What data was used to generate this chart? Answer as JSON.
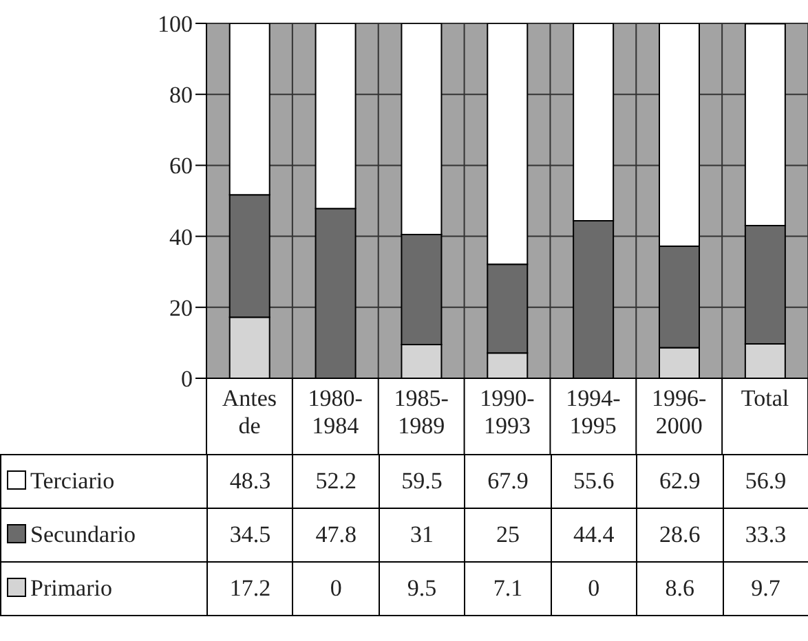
{
  "chart_data": {
    "type": "bar",
    "stacked": true,
    "categories": [
      "Antes de",
      "1980-1984",
      "1985-1989",
      "1990-1993",
      "1994-1995",
      "1996-2000",
      "Total"
    ],
    "series": [
      {
        "name": "Primario",
        "color": "#d4d4d4",
        "values": [
          17.2,
          0,
          9.5,
          7.1,
          0,
          8.6,
          9.7
        ]
      },
      {
        "name": "Secundario",
        "color": "#6b6b6b",
        "values": [
          34.5,
          47.8,
          31,
          25,
          44.4,
          28.6,
          33.3
        ]
      },
      {
        "name": "Terciario",
        "color": "#ffffff",
        "values": [
          48.3,
          52.2,
          59.5,
          67.9,
          55.6,
          62.9,
          56.9
        ]
      }
    ],
    "ylim": [
      0,
      100
    ],
    "yticks": [
      0,
      20,
      40,
      60,
      80,
      100
    ],
    "grid": true,
    "legend": "bottom",
    "data_labels": true
  }
}
